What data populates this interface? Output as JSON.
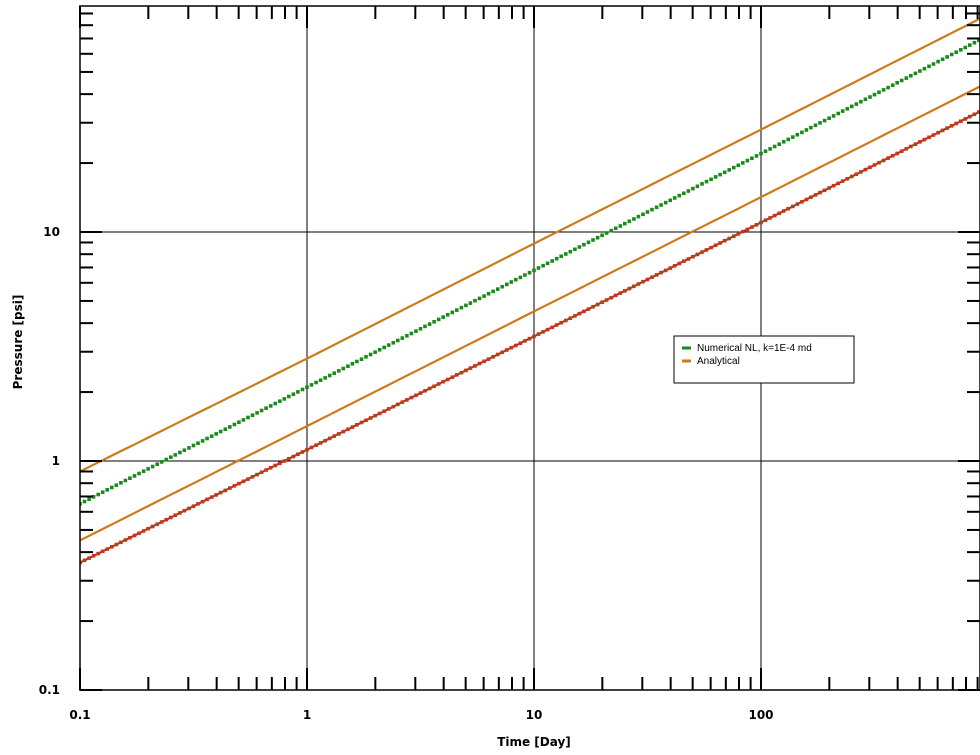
{
  "chart_data": {
    "type": "line",
    "xlabel": "Time [Day]",
    "ylabel": "Pressure [psi]",
    "x_scale": "log",
    "y_scale": "log",
    "xlim": [
      0.1,
      1000
    ],
    "ylim": [
      0.1,
      100
    ],
    "x_ticks": [
      "0.1",
      "1",
      "10",
      "100"
    ],
    "y_ticks": [
      "0.1",
      "1",
      "10"
    ],
    "grid": true,
    "legend_position": "right-center",
    "legend": [
      {
        "label": "Numerical NL, k=1E-4 md",
        "color": "#1a8a1a"
      },
      {
        "label": "Analytical",
        "color": "#cc7a1a"
      }
    ],
    "series": [
      {
        "name": "Numerical NL, k=1E-4 md",
        "color": "#1a8a1a",
        "style": "markers",
        "x": [
          0.1,
          1,
          10,
          100,
          1000
        ],
        "y": [
          0.65,
          2.1,
          6.8,
          22,
          72
        ]
      },
      {
        "color": "#1a8a1a",
        "style": "line",
        "x": [
          0.1,
          1,
          10,
          100,
          1000
        ],
        "y": [
          0.36,
          1.12,
          3.5,
          11,
          35
        ]
      },
      {
        "color": "#dd2a1a",
        "style": "markers",
        "x": [
          0.1,
          1,
          10,
          100,
          1000
        ],
        "y": [
          0.36,
          1.12,
          3.5,
          11,
          35
        ]
      },
      {
        "name": "Analytical",
        "color": "#cc7a1a",
        "style": "line",
        "x": [
          0.1,
          1,
          10,
          100,
          1000
        ],
        "y": [
          0.9,
          2.8,
          8.9,
          28,
          89
        ]
      },
      {
        "color": "#cc7a1a",
        "style": "line",
        "x": [
          0.1,
          1,
          10,
          100,
          1000
        ],
        "y": [
          0.45,
          1.42,
          4.5,
          14.2,
          45
        ]
      }
    ]
  }
}
